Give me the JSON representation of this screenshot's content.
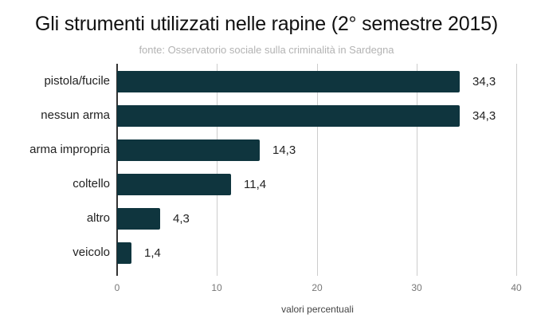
{
  "chart_data": {
    "type": "bar",
    "orientation": "horizontal",
    "title": "Gli  strumenti utilizzati nelle rapine (2° semestre 2015)",
    "subtitle": "fonte: Osservatorio sociale sulla criminalità in Sardegna",
    "xlabel": "valori percentuali",
    "ylabel": "",
    "xlim": [
      0,
      40
    ],
    "xticks": [
      "0",
      "10",
      "20",
      "30",
      "40"
    ],
    "grid": true,
    "legend": null,
    "bar_color": "#0f353e",
    "categories": [
      "pistola/fucile",
      "nessun arma",
      "arma impropria",
      "coltello",
      "altro",
      "veicolo"
    ],
    "values": [
      34.3,
      34.3,
      14.3,
      11.4,
      4.3,
      1.4
    ],
    "value_labels": [
      "34,3",
      "34,3",
      "14,3",
      "11,4",
      "4,3",
      "1,4"
    ]
  }
}
